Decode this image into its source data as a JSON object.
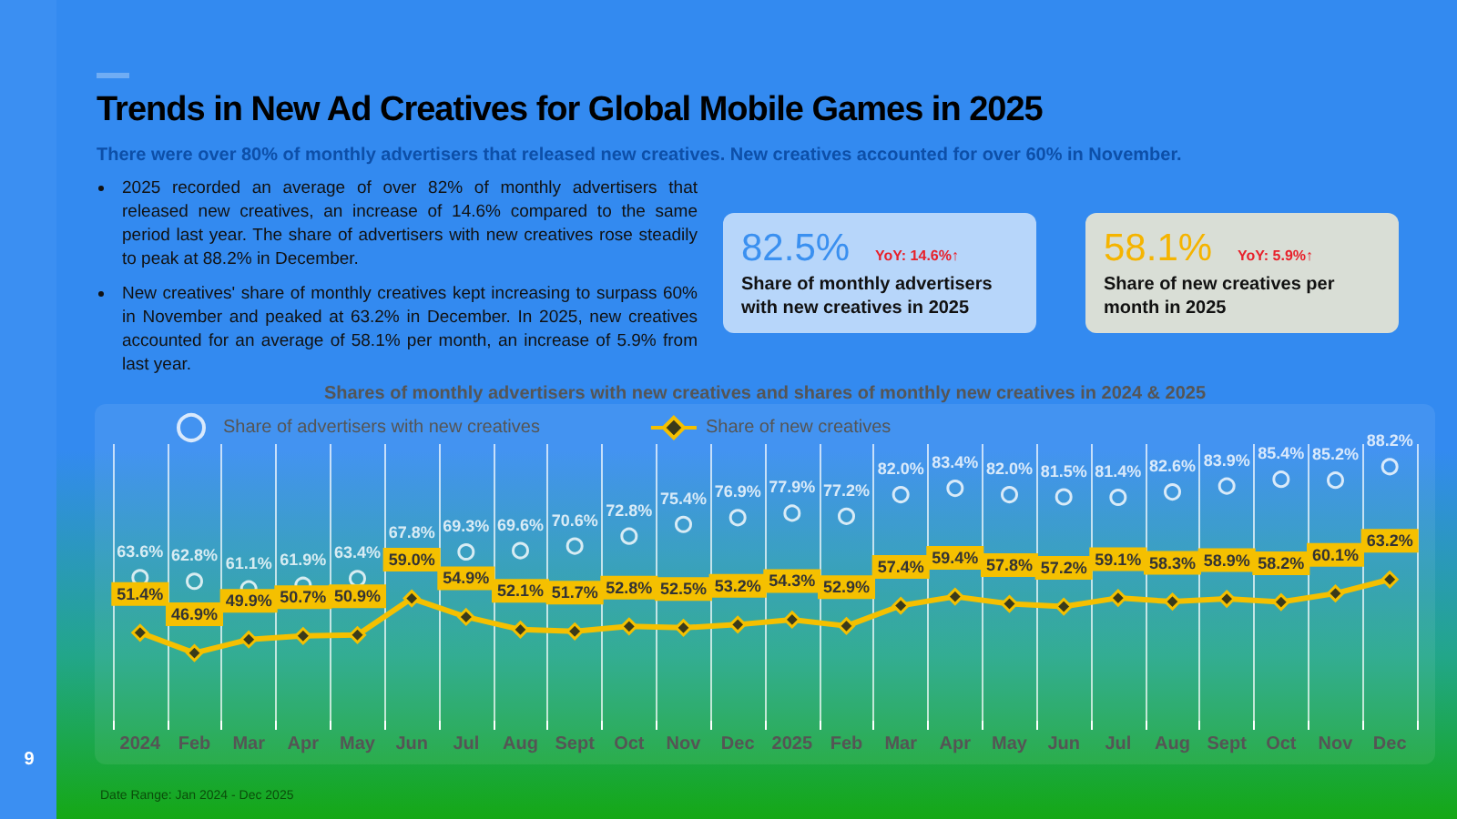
{
  "chart_data": {
    "type": "line",
    "title": "Trends in New Ad Creatives for Global Mobile Games in 2025",
    "subtitle": "There were over 80% of monthly advertisers that released new creatives. New creatives accounted for over 60% in November.",
    "categories": [
      "2024",
      "Feb",
      "Mar",
      "Apr",
      "May",
      "Jun",
      "Jul",
      "Aug",
      "Sept",
      "Oct",
      "Nov",
      "Dec",
      "2025",
      "Feb",
      "Mar",
      "Apr",
      "May",
      "Jun",
      "Jul",
      "Aug",
      "Sept",
      "Oct",
      "Nov",
      "Dec"
    ],
    "series": [
      {
        "name": "Share of advertisers with new creatives",
        "type": "scatter",
        "marker": "circle",
        "color": "#ffffff",
        "values": [
          63.6,
          62.8,
          61.1,
          61.9,
          63.4,
          67.8,
          69.3,
          69.6,
          70.6,
          72.8,
          75.4,
          76.9,
          77.9,
          77.2,
          82.0,
          83.4,
          82.0,
          81.5,
          81.4,
          82.6,
          83.9,
          85.4,
          85.2,
          88.2
        ],
        "value_labels": [
          "63.6%",
          "62.8%",
          "61.1%",
          "61.9%",
          "63.4%",
          "67.8%",
          "69.3%",
          "69.6%",
          "70.6%",
          "72.8%",
          "75.4%",
          "76.9%",
          "77.9%",
          "77.2%",
          "82.0%",
          "83.4%",
          "82.0%",
          "81.5%",
          "81.4%",
          "82.6%",
          "83.9%",
          "85.4%",
          "85.2%",
          "88.2%"
        ]
      },
      {
        "name": "Share of new creatives",
        "marker": "diamond",
        "color": "#f5c000",
        "values": [
          51.4,
          46.9,
          49.9,
          50.7,
          50.9,
          59.0,
          54.9,
          52.1,
          51.7,
          52.8,
          52.5,
          53.2,
          54.3,
          52.9,
          57.4,
          59.4,
          57.8,
          57.2,
          59.1,
          58.3,
          58.9,
          58.2,
          60.1,
          63.2
        ],
        "value_labels": [
          "51.4%",
          "46.9%",
          "49.9%",
          "50.7%",
          "50.9%",
          "59.0%",
          "54.9%",
          "52.1%",
          "51.7%",
          "52.8%",
          "52.5%",
          "53.2%",
          "54.3%",
          "52.9%",
          "57.4%",
          "59.4%",
          "57.8%",
          "57.2%",
          "59.1%",
          "58.3%",
          "58.9%",
          "58.2%",
          "60.1%",
          "63.2%"
        ]
      }
    ],
    "grid": "x",
    "legend": "top left",
    "annotations": [
      "2025 recorded an average of over 82% of monthly advertisers that released new creatives, an increase of 14.6% compared to the same period last year. The share of advertisers with new creatives rose steadily to peak at 88.2% in December.",
      "New creatives' share of monthly creatives kept increasing to surpass 60% in November and peaked at 63.2% in December. In 2025, new creatives accounted for an average of 58.1% per month, an increase of 5.9% from last year.",
      "82.5%",
      "YoY: 14.6%↑",
      "Share of monthly advertisers with new creatives in 2025",
      "58.1%",
      "YoY: 5.9%↑",
      "Share of new creatives per month in 2025",
      "Shares of monthly advertisers with new creatives and shares of monthly new creatives in 2024 & 2025",
      "Date Range: Jan 2024 - Dec 2025",
      "9"
    ]
  }
}
